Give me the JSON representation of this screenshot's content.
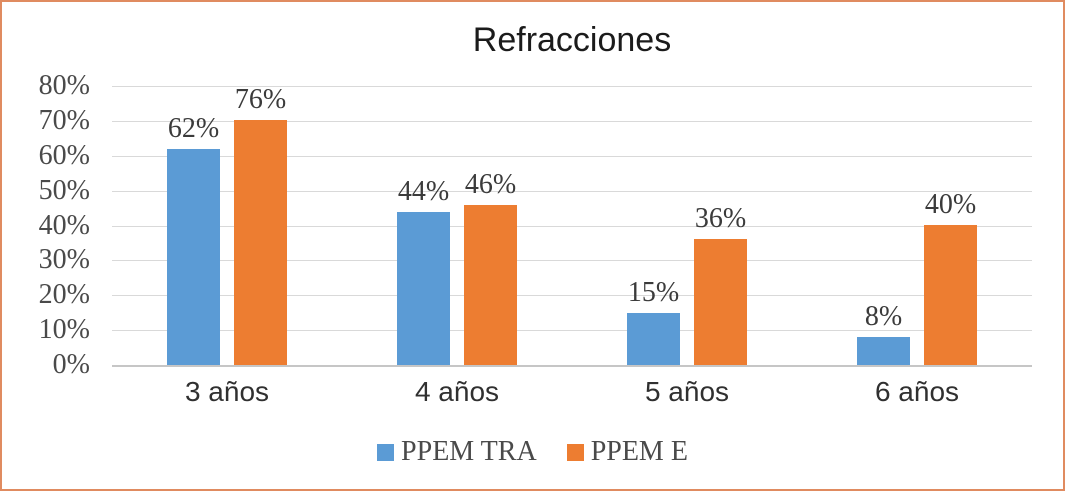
{
  "chart_data": {
    "type": "bar",
    "title": "Refracciones",
    "categories": [
      "3 años",
      "4 años",
      "5 años",
      "6 años"
    ],
    "series": [
      {
        "name": "PPEM TRA",
        "color": "#5B9BD5",
        "values": [
          62,
          44,
          15,
          8
        ]
      },
      {
        "name": "PPEM E",
        "color": "#ED7D31",
        "values": [
          76,
          46,
          36,
          40
        ]
      }
    ],
    "data_labels": true,
    "data_label_suffix": "%",
    "xlabel": "",
    "ylabel": "",
    "ylim": [
      0,
      80
    ],
    "yticks": [
      0,
      10,
      20,
      30,
      40,
      50,
      60,
      70,
      80
    ],
    "ytick_labels": [
      "0%",
      "10%",
      "20%",
      "30%",
      "40%",
      "50%",
      "60%",
      "70%",
      "80%"
    ],
    "grid": true,
    "legend_position": "bottom"
  },
  "colors": {
    "series_blue": "#5B9BD5",
    "series_orange": "#ED7D31",
    "gridline": "#D9D9D9",
    "axis_line": "#C6C6C6",
    "label_text": "#4A4A4A",
    "data_label_text": "#3B3B3B",
    "category_text": "#303030",
    "title_text": "#1B1B1B",
    "frame_border": "#E08B60",
    "background": "#FFFFFF"
  }
}
